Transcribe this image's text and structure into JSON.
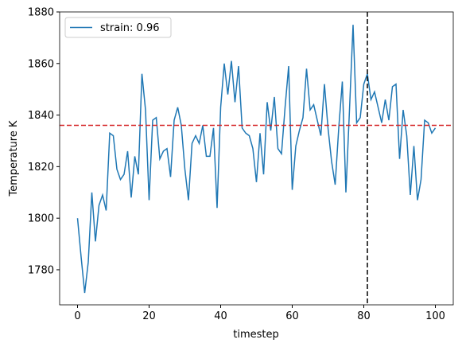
{
  "chart_data": {
    "type": "line",
    "x_label": "timestep",
    "y_label": "Temperature K",
    "x": [
      0,
      1,
      2,
      3,
      4,
      5,
      6,
      7,
      8,
      9,
      10,
      11,
      12,
      13,
      14,
      15,
      16,
      17,
      18,
      19,
      20,
      21,
      22,
      23,
      24,
      25,
      26,
      27,
      28,
      29,
      30,
      31,
      32,
      33,
      34,
      35,
      36,
      37,
      38,
      39,
      40,
      41,
      42,
      43,
      44,
      45,
      46,
      47,
      48,
      49,
      50,
      51,
      52,
      53,
      54,
      55,
      56,
      57,
      58,
      59,
      60,
      61,
      62,
      63,
      64,
      65,
      66,
      67,
      68,
      69,
      70,
      71,
      72,
      73,
      74,
      75,
      76,
      77,
      78,
      79,
      80,
      81,
      82,
      83,
      84,
      85,
      86,
      87,
      88,
      89,
      90,
      91,
      92,
      93,
      94,
      95,
      96,
      97,
      98,
      99,
      100
    ],
    "series": [
      {
        "name": "strain: 0.96",
        "color": "#1f77b4",
        "values": [
          1800,
          1785,
          1771,
          1783,
          1810,
          1791,
          1805,
          1809,
          1803,
          1833,
          1832,
          1819,
          1815,
          1817,
          1826,
          1808,
          1824,
          1817,
          1856,
          1842,
          1807,
          1838,
          1839,
          1823,
          1826,
          1827,
          1816,
          1838,
          1843,
          1836,
          1819,
          1807,
          1829,
          1832,
          1829,
          1836,
          1824,
          1824,
          1835,
          1804,
          1843,
          1860,
          1848,
          1861,
          1845,
          1859,
          1835,
          1833,
          1832,
          1827,
          1814,
          1833,
          1817,
          1845,
          1834,
          1847,
          1827,
          1825,
          1843,
          1859,
          1811,
          1828,
          1834,
          1839,
          1858,
          1842,
          1844,
          1838,
          1832,
          1852,
          1835,
          1822,
          1813,
          1835,
          1853,
          1810,
          1842,
          1875,
          1837,
          1839,
          1852,
          1856,
          1846,
          1849,
          1843,
          1837,
          1846,
          1838,
          1851,
          1852,
          1823,
          1842,
          1832,
          1809,
          1828,
          1807,
          1815,
          1838,
          1837,
          1833,
          1835
        ]
      }
    ],
    "hline": {
      "value": 1836,
      "color": "#d62728"
    },
    "vline": {
      "value": 81,
      "color": "#000000"
    },
    "xlim": [
      -5,
      105
    ],
    "ylim": [
      1766.4,
      1880
    ],
    "xticks": [
      0,
      20,
      40,
      60,
      80,
      100
    ],
    "yticks": [
      1780,
      1800,
      1820,
      1840,
      1860,
      1880
    ],
    "legend": "upper left",
    "grid": false
  }
}
